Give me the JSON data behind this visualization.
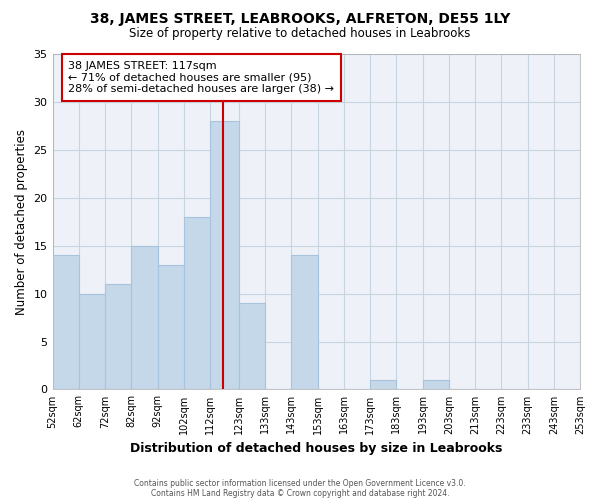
{
  "title": "38, JAMES STREET, LEABROOKS, ALFRETON, DE55 1LY",
  "subtitle": "Size of property relative to detached houses in Leabrooks",
  "xlabel": "Distribution of detached houses by size in Leabrooks",
  "ylabel": "Number of detached properties",
  "footer1": "Contains HM Land Registry data © Crown copyright and database right 2024.",
  "footer2": "Contains public sector information licensed under the Open Government Licence v3.0.",
  "bin_edges": [
    52,
    62,
    72,
    82,
    92,
    102,
    112,
    123,
    133,
    143,
    153,
    163,
    173,
    183,
    193,
    203,
    213,
    223,
    233,
    243,
    253
  ],
  "bin_heights": [
    14,
    10,
    11,
    15,
    13,
    18,
    28,
    9,
    0,
    14,
    0,
    0,
    1,
    0,
    1,
    0,
    0,
    0,
    0,
    0
  ],
  "bar_facecolor": "#c5d8ea",
  "bar_edgecolor": "#a8c4dc",
  "vline_x": 117,
  "vline_color": "#cc0000",
  "ylim": [
    0,
    35
  ],
  "yticks": [
    0,
    5,
    10,
    15,
    20,
    25,
    30,
    35
  ],
  "annotation_title": "38 JAMES STREET: 117sqm",
  "annotation_line1": "← 71% of detached houses are smaller (95)",
  "annotation_line2": "28% of semi-detached houses are larger (38) →",
  "annotation_box_facecolor": "#ffffff",
  "annotation_box_edgecolor": "#cc0000",
  "grid_color": "#c8d4e0",
  "background_color": "#ffffff",
  "axes_background": "#eef2f8"
}
